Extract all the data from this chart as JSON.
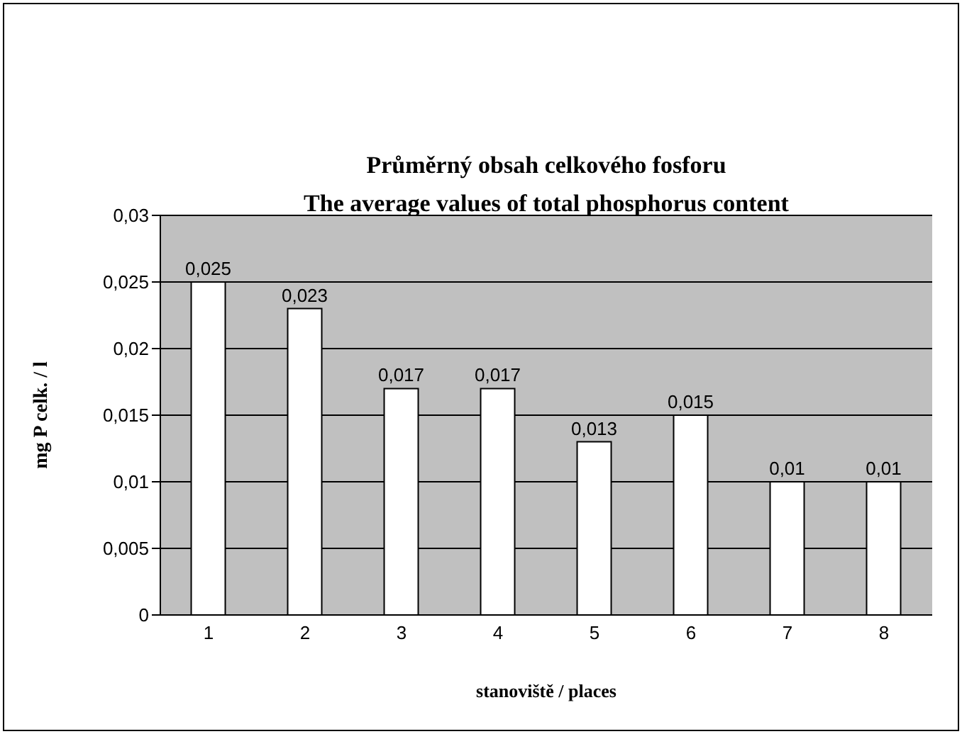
{
  "chart_data": {
    "type": "bar",
    "title": "Průměrný obsah celkového fosforu\nThe average values of total phosphorus content",
    "xlabel": "stanoviště / places",
    "ylabel": "mg P celk. / l",
    "categories": [
      "1",
      "2",
      "3",
      "4",
      "5",
      "6",
      "7",
      "8"
    ],
    "values": [
      0.025,
      0.023,
      0.017,
      0.017,
      0.013,
      0.015,
      0.01,
      0.01
    ],
    "value_labels": [
      "0,025",
      "0,023",
      "0,017",
      "0,017",
      "0,013",
      "0,015",
      "0,01",
      "0,01"
    ],
    "color": "#ffffff",
    "ylim": [
      0,
      0.03
    ],
    "yticks": [
      {
        "value": 0,
        "label": "0"
      },
      {
        "value": 0.005,
        "label": "0,005"
      },
      {
        "value": 0.01,
        "label": "0,01"
      },
      {
        "value": 0.015,
        "label": "0,015"
      },
      {
        "value": 0.02,
        "label": "0,02"
      },
      {
        "value": 0.025,
        "label": "0,025"
      },
      {
        "value": 0.03,
        "label": "0,03"
      }
    ],
    "grid": "y",
    "legend": false
  }
}
